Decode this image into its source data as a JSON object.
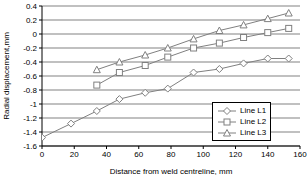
{
  "chart_data": {
    "type": "line",
    "x_label": "Distance from weld centreline, mm",
    "y_label": "Radial displacement,mm",
    "x": [
      0,
      18,
      34,
      48,
      64,
      78,
      94,
      110,
      125,
      140,
      153
    ],
    "series": [
      {
        "name": "Line L1",
        "color": "#808080",
        "marker": "diamond",
        "values": [
          -1.48,
          -1.28,
          -1.1,
          -0.93,
          -0.84,
          -0.78,
          -0.55,
          -0.5,
          -0.42,
          -0.35,
          -0.35
        ]
      },
      {
        "name": "Line L2",
        "color": "#808080",
        "marker": "square",
        "values": [
          null,
          null,
          -0.73,
          -0.55,
          -0.45,
          -0.33,
          -0.2,
          -0.13,
          -0.05,
          0.02,
          0.08
        ]
      },
      {
        "name": "Line L3",
        "color": "#808080",
        "marker": "triangle",
        "values": [
          null,
          null,
          -0.51,
          -0.4,
          -0.3,
          -0.2,
          -0.07,
          0.05,
          0.13,
          0.22,
          0.3
        ]
      }
    ],
    "xlim": [
      0,
      160
    ],
    "xticks": [
      0,
      20,
      40,
      60,
      80,
      100,
      120,
      140,
      160
    ],
    "ylim": [
      -1.6,
      0.4
    ],
    "yticks": [
      -1.6,
      -1.4,
      -1.2,
      -1,
      -0.8,
      -0.6,
      -0.4,
      -0.2,
      0,
      0.2,
      0.4
    ],
    "grid": true,
    "legend": "lower right"
  }
}
